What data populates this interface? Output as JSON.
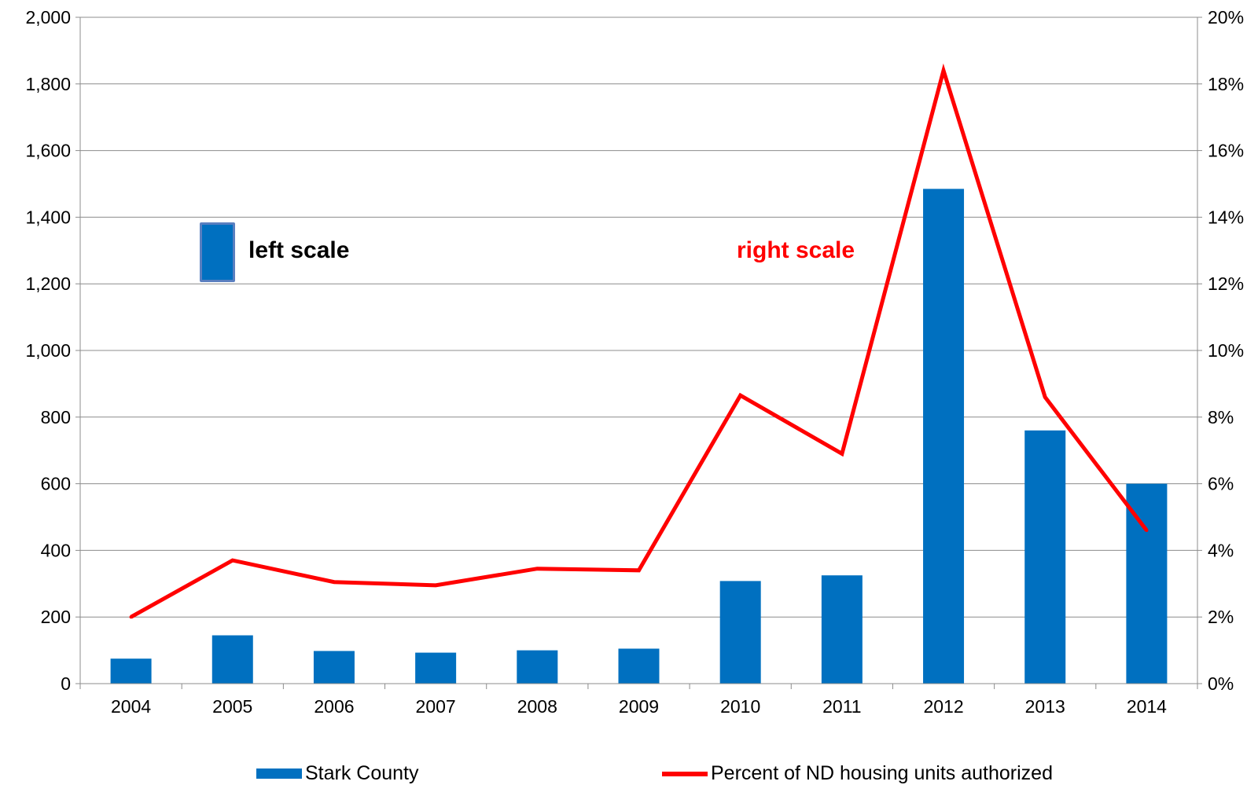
{
  "chart_data": {
    "type": "bar",
    "categories": [
      "2004",
      "2005",
      "2006",
      "2007",
      "2008",
      "2009",
      "2010",
      "2011",
      "2012",
      "2013",
      "2014"
    ],
    "series": [
      {
        "name": "Stark County",
        "type": "bar",
        "axis": "left",
        "color": "#0070c0",
        "values": [
          75,
          145,
          98,
          93,
          100,
          105,
          308,
          325,
          1485,
          760,
          600
        ]
      },
      {
        "name": "Percent of ND housing units authorized",
        "type": "line",
        "axis": "right",
        "color": "#ff0000",
        "values": [
          2.0,
          3.7,
          3.05,
          2.95,
          3.45,
          3.4,
          8.65,
          6.9,
          18.4,
          8.6,
          4.6
        ]
      }
    ],
    "y_left": {
      "min": 0,
      "max": 2000,
      "step": 200,
      "tick_labels": [
        "0",
        "200",
        "400",
        "600",
        "800",
        "1,000",
        "1,200",
        "1,400",
        "1,600",
        "1,800",
        "2,000"
      ]
    },
    "y_right": {
      "min": 0,
      "max": 20,
      "step": 2,
      "unit": "%",
      "tick_labels": [
        "0%",
        "2%",
        "4%",
        "6%",
        "8%",
        "10%",
        "12%",
        "14%",
        "16%",
        "18%",
        "20%"
      ]
    },
    "title": "",
    "xlabel": "",
    "ylabel": "",
    "grid": true,
    "legend_position": "bottom",
    "annotations": {
      "left_scale": "left scale",
      "right_scale": "right scale"
    }
  }
}
